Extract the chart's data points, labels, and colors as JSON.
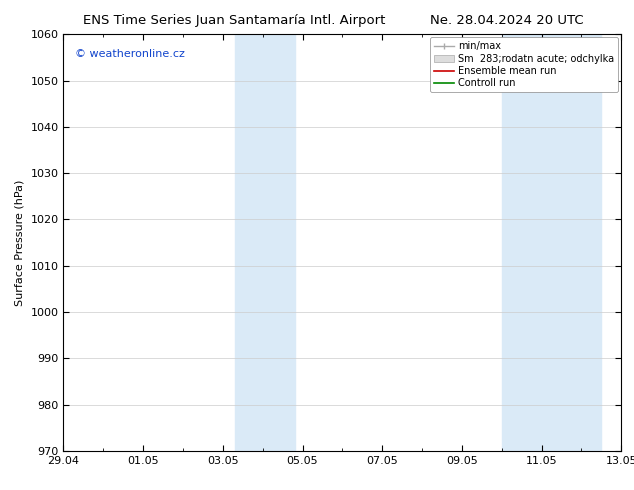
{
  "title_left": "ENS Time Series Juan Santamaría Intl. Airport",
  "title_right": "Ne. 28.04.2024 20 UTC",
  "ylabel": "Surface Pressure (hPa)",
  "ylim": [
    970,
    1060
  ],
  "yticks": [
    970,
    980,
    990,
    1000,
    1010,
    1020,
    1030,
    1040,
    1050,
    1060
  ],
  "xlim_start": 0,
  "xlim_end": 14,
  "xtick_positions": [
    0,
    2,
    4,
    6,
    8,
    10,
    12,
    14
  ],
  "xtick_labels": [
    "29.04",
    "01.05",
    "03.05",
    "05.05",
    "07.05",
    "09.05",
    "11.05",
    "13.05"
  ],
  "shade_bands": [
    {
      "xmin": 4.3,
      "xmax": 5.8
    },
    {
      "xmin": 11.0,
      "xmax": 13.5
    }
  ],
  "shade_color": "#daeaf7",
  "background_color": "#ffffff",
  "plot_background": "#ffffff",
  "watermark": "© weatheronline.cz",
  "legend_labels": [
    "min/max",
    "Sm  283;rodatn acute; odchylka",
    "Ensemble mean run",
    "Controll run"
  ],
  "legend_line_colors": [
    "#aaaaaa",
    "#cccccc",
    "#cc0000",
    "#008800"
  ],
  "grid_color": "#cccccc",
  "title_fontsize": 9.5,
  "tick_fontsize": 8,
  "ylabel_fontsize": 8,
  "legend_fontsize": 7,
  "watermark_fontsize": 8,
  "watermark_color": "#1144cc"
}
